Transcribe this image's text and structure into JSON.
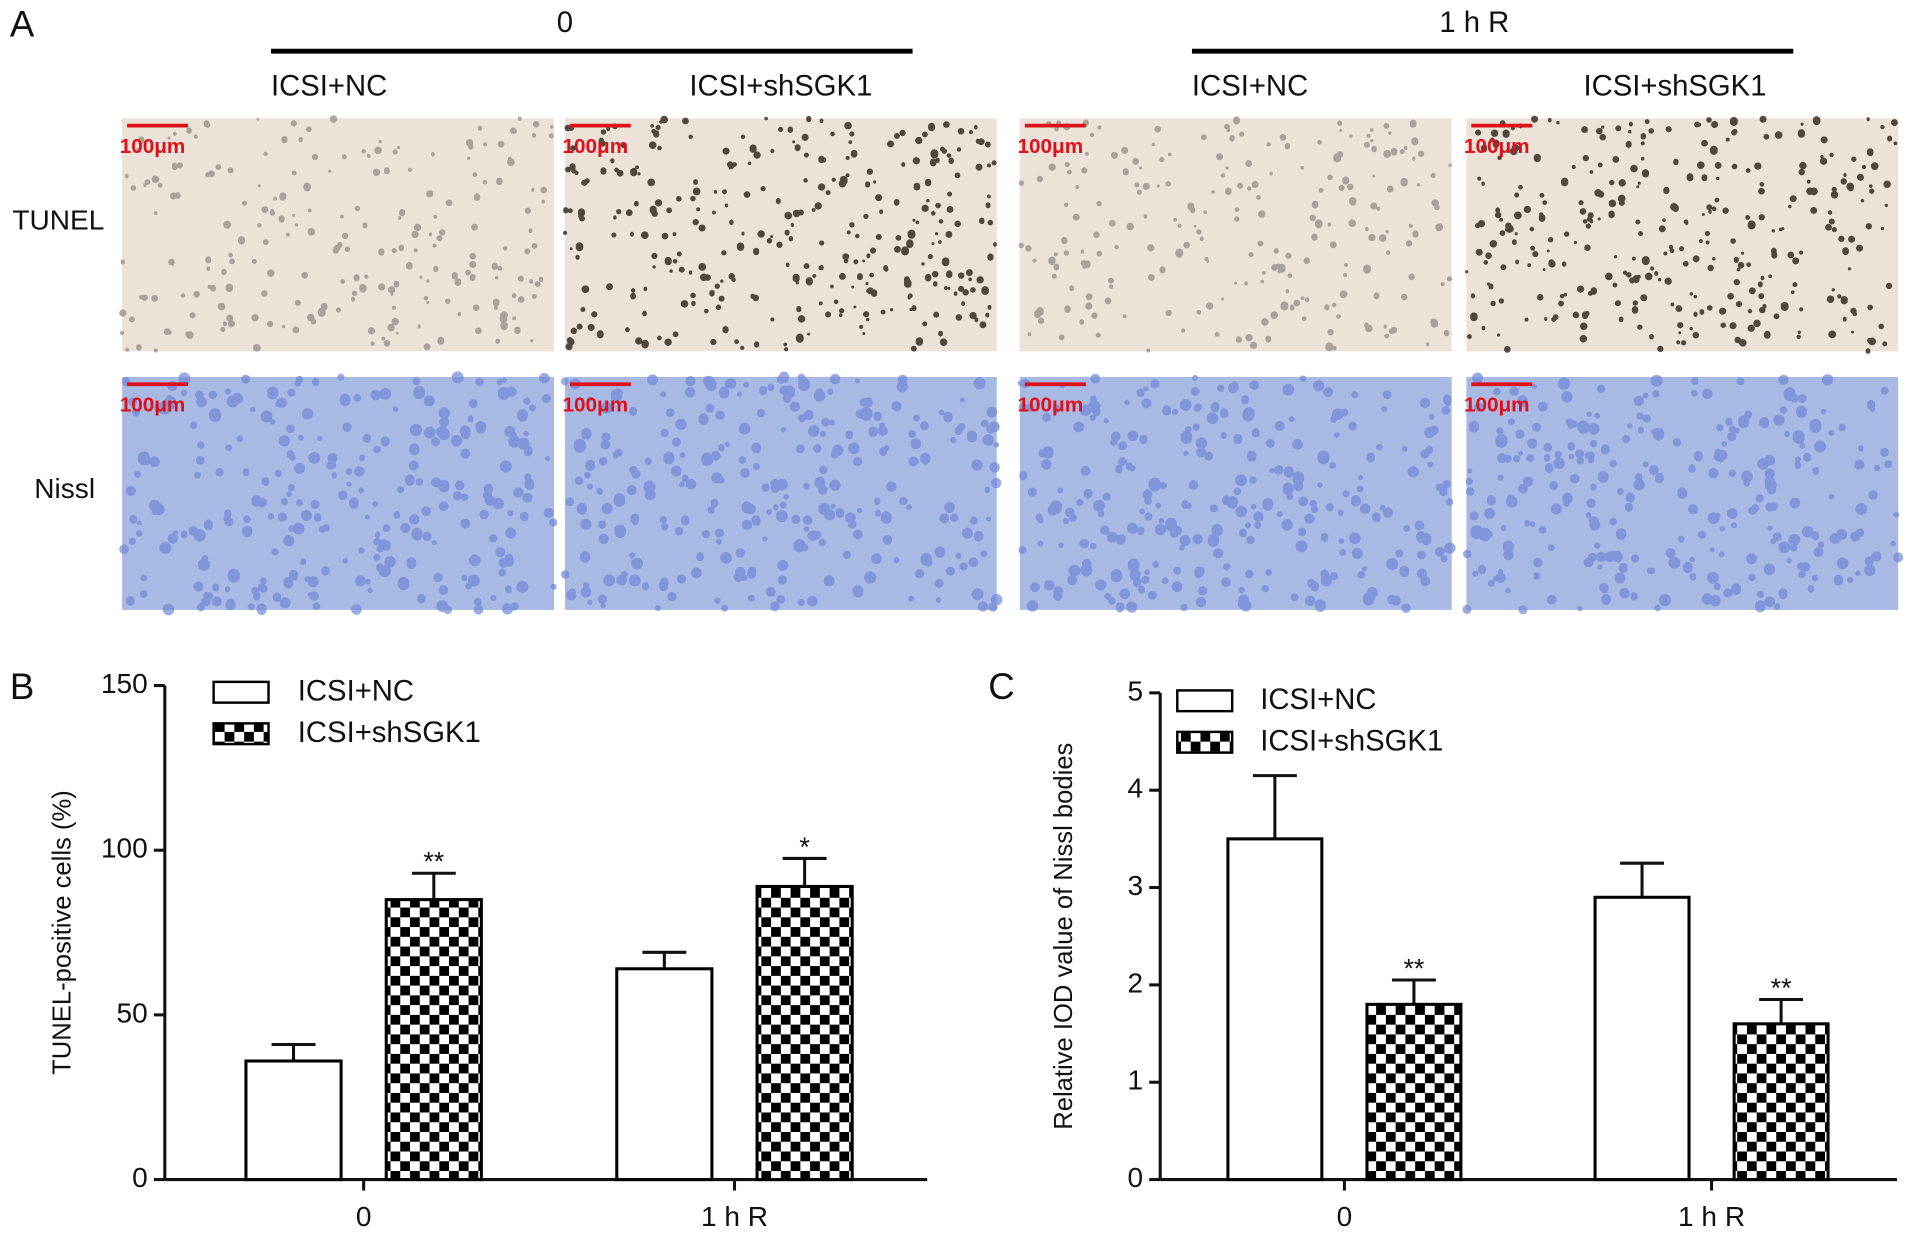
{
  "panel_a": {
    "label": "A",
    "groups": [
      {
        "title": "0",
        "columns": [
          "ICSI+NC",
          "ICSI+shSGK1"
        ]
      },
      {
        "title": "1 h R",
        "columns": [
          "ICSI+NC",
          "ICSI+shSGK1"
        ]
      }
    ],
    "rows": [
      "TUNEL",
      "Nissl"
    ],
    "scale_bar": "100μm"
  },
  "chart_data": [
    {
      "type": "bar",
      "panel_label": "B",
      "ylabel": "TUNEL-positive cells (%)",
      "categories": [
        "0",
        "1 h R"
      ],
      "ylim": [
        0,
        150
      ],
      "yticks": [
        0,
        50,
        100,
        150
      ],
      "legend": "upper left",
      "series": [
        {
          "name": "ICSI+NC",
          "color": "#ffffff",
          "values": [
            36,
            64
          ],
          "errors": [
            5,
            5
          ]
        },
        {
          "name": "ICSI+shSGK1",
          "color": "#000000",
          "pattern": "checker",
          "values": [
            85,
            89
          ],
          "errors": [
            8,
            8.5
          ],
          "significance": [
            "**",
            "*"
          ]
        }
      ]
    },
    {
      "type": "bar",
      "panel_label": "C",
      "ylabel": "Relative  IOD value of Nissl bodies",
      "categories": [
        "0",
        "1 h R"
      ],
      "ylim": [
        0,
        5
      ],
      "yticks": [
        0,
        1,
        2,
        3,
        4,
        5
      ],
      "legend": "upper left",
      "series": [
        {
          "name": "ICSI+NC",
          "color": "#ffffff",
          "values": [
            3.5,
            2.9
          ],
          "errors": [
            0.65,
            0.35
          ]
        },
        {
          "name": "ICSI+shSGK1",
          "color": "#000000",
          "pattern": "checker",
          "values": [
            1.8,
            1.6
          ],
          "errors": [
            0.25,
            0.25
          ],
          "significance": [
            "**",
            "**"
          ]
        }
      ]
    }
  ]
}
